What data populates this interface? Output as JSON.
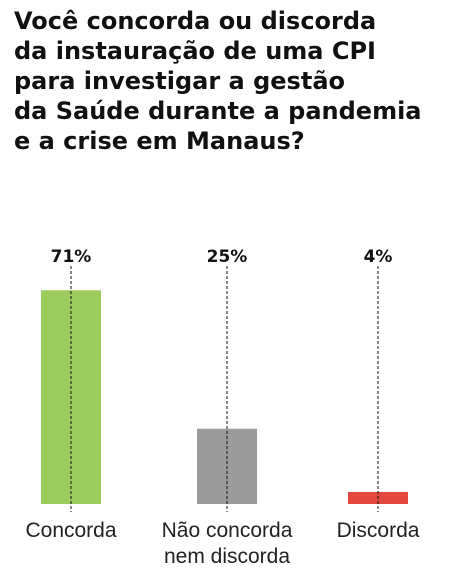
{
  "chart_data": {
    "type": "bar",
    "title": [
      "Você concorda ou discorda",
      "da instauração de uma CPI",
      "para investigar a gestão",
      "da Saúde durante a pandemia",
      "e a crise em Manaus?"
    ],
    "categories": [
      "Concorda",
      "Não concorda nem discorda",
      "Discorda"
    ],
    "values": [
      71,
      25,
      4
    ],
    "value_labels": [
      "71%",
      "25%",
      "4%"
    ],
    "colors": [
      "#9ccb5e",
      "#9b9b9b",
      "#e2483d"
    ]
  }
}
